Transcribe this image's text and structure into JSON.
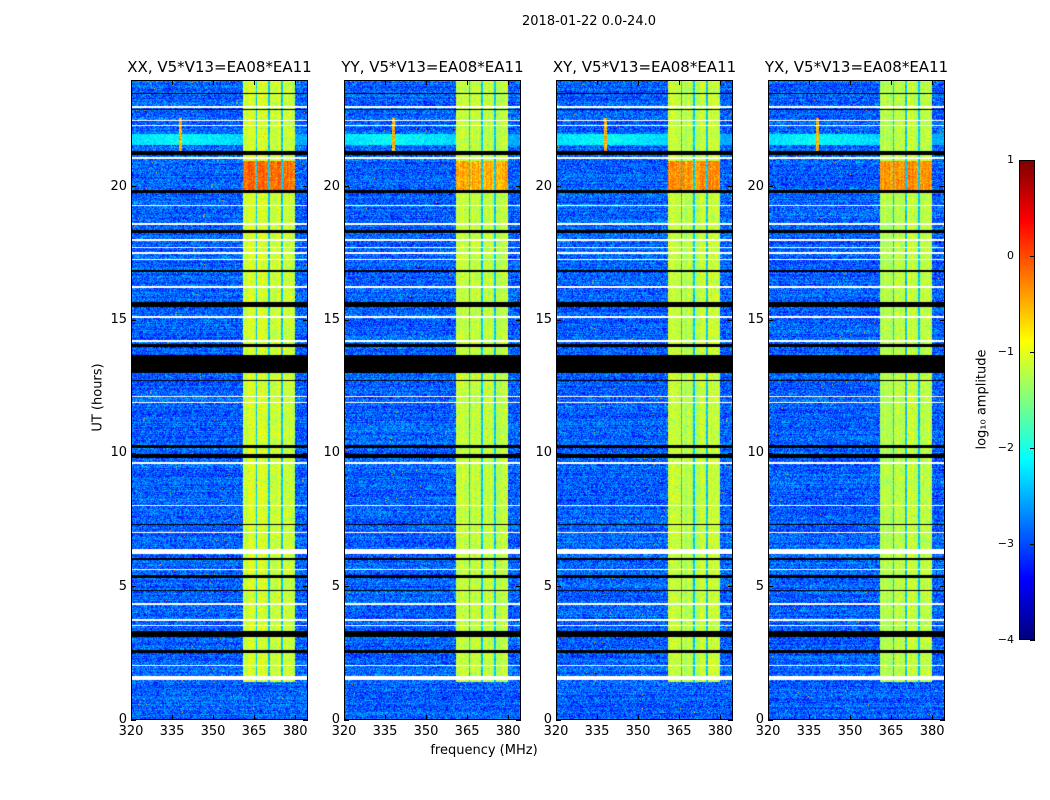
{
  "figure_title": "2018-01-22 0.0-24.0",
  "chart_data": {
    "type": "heatmap",
    "title": "2018-01-22 0.0-24.0",
    "xlabel": "frequency (MHz)",
    "ylabel": "UT (hours)",
    "xlim": [
      320,
      384.7
    ],
    "ylim": [
      0,
      24
    ],
    "xticks": [
      "320",
      "335",
      "350",
      "365",
      "380"
    ],
    "xtick_values": [
      320,
      335,
      350,
      365,
      380
    ],
    "yticks": [
      "0",
      "5",
      "10",
      "15",
      "20"
    ],
    "ytick_values": [
      0,
      5,
      10,
      15,
      20
    ],
    "panels": [
      {
        "title": "XX, V5*V13=EA08*EA11",
        "band_level": -1.25,
        "hot_range": [
          19.8,
          21.0
        ],
        "hot_level": -0.3
      },
      {
        "title": "YY, V5*V13=EA08*EA11",
        "band_level": -1.3,
        "hot_range": [
          19.8,
          21.0
        ],
        "hot_level": -0.6
      },
      {
        "title": "XY, V5*V13=EA08*EA11",
        "band_level": -1.35,
        "hot_range": [
          19.8,
          21.0
        ],
        "hot_level": -0.5
      },
      {
        "title": "YX, V5*V13=EA08*EA11",
        "band_level": -1.35,
        "hot_range": [
          19.8,
          21.0
        ],
        "hot_level": -0.5
      }
    ],
    "background_level": -2.9,
    "band_mhz": [
      361,
      380.4
    ],
    "band_gaps_mhz": [
      366,
      370.7,
      375.5
    ],
    "band_hours": [
      1.4,
      24
    ],
    "rfi_spike": {
      "freq_mhz": 338,
      "hours": [
        21.3,
        22.6
      ]
    },
    "rfi_streak_hours": [
      21.6,
      22.0
    ],
    "flagged_black_hours": [
      [
        13.0,
        13.7
      ],
      [
        3.1,
        3.3
      ],
      [
        2.5,
        2.6
      ],
      [
        15.5,
        15.7
      ],
      [
        21.2,
        21.35
      ],
      [
        19.8,
        19.9
      ],
      [
        18.3,
        18.4
      ],
      [
        9.8,
        9.95
      ],
      [
        10.2,
        10.3
      ],
      [
        16.8,
        16.9
      ],
      [
        6.0,
        6.05
      ],
      [
        5.3,
        5.4
      ],
      [
        4.8,
        4.85
      ],
      [
        7.3,
        7.35
      ],
      [
        12.7,
        12.75
      ],
      [
        14.0,
        14.1
      ],
      [
        23.5,
        23.55
      ],
      [
        22.9,
        22.95
      ],
      [
        0.6,
        0.62
      ]
    ],
    "flagged_white_hours": [
      [
        6.2,
        6.4
      ],
      [
        1.45,
        1.6
      ],
      [
        21.05,
        21.15
      ],
      [
        22.3,
        22.36
      ],
      [
        16.2,
        16.27
      ],
      [
        17.25,
        17.3
      ],
      [
        17.5,
        17.55
      ],
      [
        17.7,
        17.74
      ],
      [
        18.0,
        18.05
      ],
      [
        18.6,
        18.65
      ],
      [
        19.3,
        19.35
      ],
      [
        12.1,
        12.15
      ],
      [
        11.9,
        11.93
      ],
      [
        14.2,
        14.25
      ],
      [
        15.1,
        15.15
      ],
      [
        8.0,
        8.05
      ],
      [
        9.6,
        9.65
      ],
      [
        7.0,
        7.05
      ],
      [
        5.6,
        5.65
      ],
      [
        4.3,
        4.35
      ],
      [
        3.7,
        3.75
      ],
      [
        3.5,
        3.55
      ],
      [
        2.0,
        2.04
      ],
      [
        1.9,
        1.93
      ],
      [
        23.0,
        23.05
      ],
      [
        22.5,
        22.55
      ]
    ],
    "colorbar": {
      "label": "log₁₀ amplitude",
      "range": [
        -4,
        1
      ],
      "ticks": [
        "1",
        "0",
        "−1",
        "−2",
        "−3",
        "−4"
      ],
      "tick_values": [
        1,
        0,
        -1,
        -2,
        -3,
        -4
      ],
      "colormap": "jet"
    }
  }
}
